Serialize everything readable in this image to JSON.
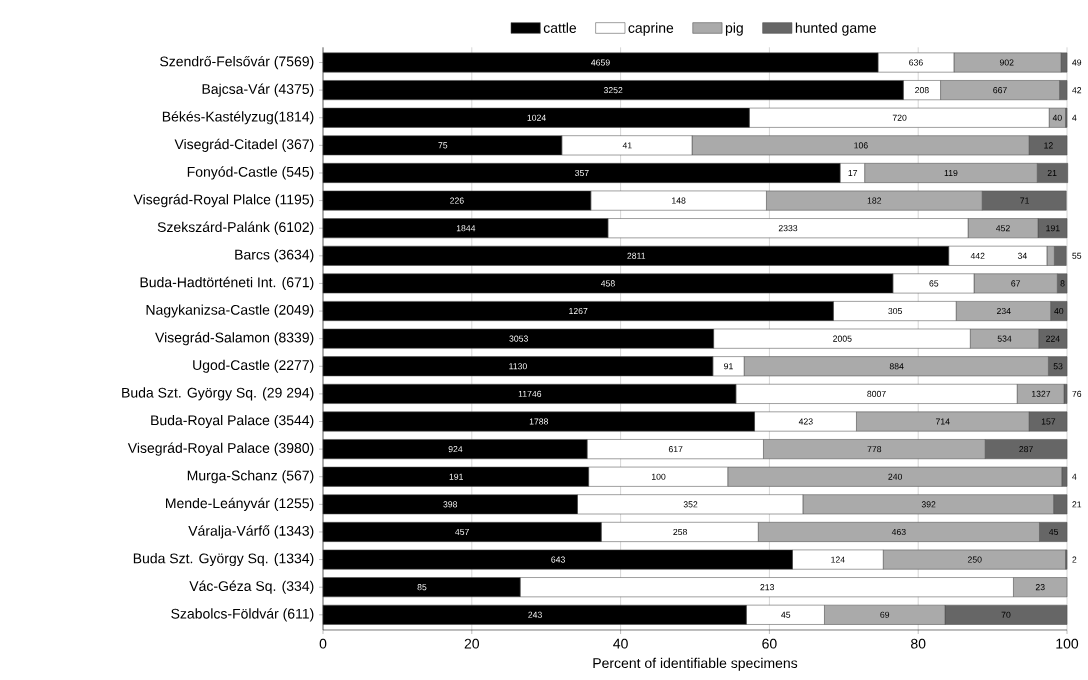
{
  "chart_data": {
    "type": "bar",
    "orientation": "horizontal",
    "stacked": true,
    "categories": [
      "Szendrő-Felsővár (7569)",
      "Bajcsa-Vár (4375)",
      "Békés-Kastélyzug(1814)",
      "Visegrád-Citadel (367)",
      "Fonyód-Castle (545)",
      "Visegrád-Royal Plalce (1195)",
      "Szekszárd-Palánk (6102)",
      "Barcs (3634)",
      "Buda-Hadtörténeti Int. (671)",
      "Nagykanizsa-Castle (2049)",
      "Visegrád-Salamon (8339)",
      "Ugod-Castle (2277)",
      "Buda Szt. György Sq. (29 294)",
      "Buda-Royal Palace (3544)",
      "Visegrád-Royal Palace (3980)",
      "Murga-Schanz (567)",
      "Mende-Leányvár (1255)",
      "Váralja-Várfő (1343)",
      "Buda Szt. György Sq. (1334)",
      "Vác-Géza Sq. (334)",
      "Szabolcs-Földvár (611)"
    ],
    "series": [
      {
        "name": "cattle",
        "color": "#000000",
        "values": [
          74.6,
          78.0,
          57.3,
          32.1,
          69.5,
          36.0,
          38.3,
          84.1,
          76.6,
          68.6,
          52.5,
          52.4,
          55.5,
          58.0,
          35.5,
          35.7,
          34.2,
          37.4,
          63.1,
          26.5,
          56.9
        ]
      },
      {
        "name": "caprine",
        "color": "#ffffff",
        "values": [
          10.2,
          5.0,
          40.3,
          17.5,
          3.3,
          23.6,
          48.4,
          13.2,
          10.9,
          16.5,
          34.5,
          4.2,
          37.8,
          13.7,
          23.7,
          18.7,
          30.3,
          21.1,
          12.2,
          66.3,
          10.5
        ]
      },
      {
        "name": "pig",
        "color": "#aaaaaa",
        "values": [
          14.4,
          16.0,
          2.2,
          45.3,
          23.2,
          29.0,
          9.4,
          1.0,
          11.2,
          12.7,
          9.2,
          40.9,
          6.3,
          23.2,
          29.8,
          44.9,
          33.7,
          37.8,
          24.5,
          7.2,
          16.2
        ]
      },
      {
        "name": "hunted game",
        "color": "#666666",
        "values": [
          0.8,
          1.0,
          0.2,
          5.1,
          4.1,
          11.3,
          3.9,
          1.6,
          1.3,
          2.2,
          3.8,
          2.5,
          0.4,
          5.1,
          11.0,
          0.7,
          1.8,
          3.7,
          0.2,
          null,
          16.4
        ]
      }
    ],
    "annotations": [
      {
        "text": "4659",
        "x": 37.3,
        "y": "Szendrő-Felsővár (7569)"
      },
      {
        "text": "636",
        "x": 79.7,
        "y": "Szendrő-Felsővár (7569)"
      },
      {
        "text": "902",
        "x": 91.9,
        "y": "Szendrő-Felsővár (7569)"
      },
      {
        "text": "49",
        "x": 100,
        "y": "Szendrő-Felsővár (7569)"
      },
      {
        "text": "3252",
        "x": 39.0,
        "y": "Bajcsa-Vár (4375)"
      },
      {
        "text": "208",
        "x": 80.5,
        "y": "Bajcsa-Vár (4375)"
      },
      {
        "text": "667",
        "x": 91.0,
        "y": "Bajcsa-Vár (4375)"
      },
      {
        "text": "42",
        "x": 100,
        "y": "Bajcsa-Vár (4375)"
      },
      {
        "text": "1024",
        "x": 28.7,
        "y": "Békés-Kastélyzug(1814)"
      },
      {
        "text": "720",
        "x": 77.5,
        "y": "Békés-Kastélyzug(1814)"
      },
      {
        "text": "40",
        "x": 98.7,
        "y": "Békés-Kastélyzug(1814)"
      },
      {
        "text": "4",
        "x": 100,
        "y": "Békés-Kastélyzug(1814)"
      },
      {
        "text": "75",
        "x": 16.1,
        "y": "Visegrád-Citadel (367)"
      },
      {
        "text": "41",
        "x": 40.9,
        "y": "Visegrád-Citadel (367)"
      },
      {
        "text": "106",
        "x": 72.3,
        "y": "Visegrád-Citadel (367)"
      },
      {
        "text": "12",
        "x": 97.5,
        "y": "Visegrád-Citadel (367)"
      },
      {
        "text": "357",
        "x": 34.8,
        "y": "Fonyód-Castle (545)"
      },
      {
        "text": "17",
        "x": 71.2,
        "y": "Fonyód-Castle (545)"
      },
      {
        "text": "119",
        "x": 84.4,
        "y": "Fonyód-Castle (545)"
      },
      {
        "text": "21",
        "x": 98.0,
        "y": "Fonyód-Castle (545)"
      },
      {
        "text": "226",
        "x": 18.0,
        "y": "Visegrád-Royal Plalce (1195)"
      },
      {
        "text": "148",
        "x": 47.8,
        "y": "Visegrád-Royal Plalce (1195)"
      },
      {
        "text": "182",
        "x": 74.1,
        "y": "Visegrád-Royal Plalce (1195)"
      },
      {
        "text": "71",
        "x": 94.3,
        "y": "Visegrád-Royal Plalce (1195)"
      },
      {
        "text": "1844",
        "x": 19.2,
        "y": "Szekszárd-Palánk (6102)"
      },
      {
        "text": "2333",
        "x": 62.5,
        "y": "Szekszárd-Palánk (6102)"
      },
      {
        "text": "452",
        "x": 91.4,
        "y": "Szekszárd-Palánk (6102)"
      },
      {
        "text": "191",
        "x": 98.1,
        "y": "Szekszárd-Palánk (6102)"
      },
      {
        "text": "2811",
        "x": 42.1,
        "y": "Barcs (3634)"
      },
      {
        "text": "442",
        "x": 88.0,
        "y": "Barcs (3634)"
      },
      {
        "text": "34",
        "x": 94.0,
        "y": "Barcs (3634)"
      },
      {
        "text": "55",
        "x": 100,
        "y": "Barcs (3634)"
      },
      {
        "text": "458",
        "x": 38.3,
        "y": "Buda-Hadtörténeti Int. (671)"
      },
      {
        "text": "65",
        "x": 82.1,
        "y": "Buda-Hadtörténeti Int. (671)"
      },
      {
        "text": "67",
        "x": 93.1,
        "y": "Buda-Hadtörténeti Int. (671)"
      },
      {
        "text": "8",
        "x": 99.4,
        "y": "Buda-Hadtörténeti Int. (671)"
      },
      {
        "text": "1267",
        "x": 34.3,
        "y": "Nagykanizsa-Castle (2049)"
      },
      {
        "text": "305",
        "x": 76.9,
        "y": "Nagykanizsa-Castle (2049)"
      },
      {
        "text": "234",
        "x": 91.5,
        "y": "Nagykanizsa-Castle (2049)"
      },
      {
        "text": "40",
        "x": 98.9,
        "y": "Nagykanizsa-Castle (2049)"
      },
      {
        "text": "3053",
        "x": 26.3,
        "y": "Visegrád-Salamon (8339)"
      },
      {
        "text": "2005",
        "x": 69.8,
        "y": "Visegrád-Salamon (8339)"
      },
      {
        "text": "534",
        "x": 91.6,
        "y": "Visegrád-Salamon (8339)"
      },
      {
        "text": "224",
        "x": 98.1,
        "y": "Visegrád-Salamon (8339)"
      },
      {
        "text": "1130",
        "x": 26.2,
        "y": "Ugod-Castle (2277)"
      },
      {
        "text": "91",
        "x": 54.5,
        "y": "Ugod-Castle (2277)"
      },
      {
        "text": "884",
        "x": 77.1,
        "y": "Ugod-Castle (2277)"
      },
      {
        "text": "53",
        "x": 98.8,
        "y": "Ugod-Castle (2277)"
      },
      {
        "text": "11746",
        "x": 27.8,
        "y": "Buda Szt. György Sq. (29 294)"
      },
      {
        "text": "8007",
        "x": 74.4,
        "y": "Buda Szt. György Sq. (29 294)"
      },
      {
        "text": "1327",
        "x": 96.5,
        "y": "Buda Szt. György Sq. (29 294)"
      },
      {
        "text": "76",
        "x": 100,
        "y": "Buda Szt. György Sq. (29 294)"
      },
      {
        "text": "1788",
        "x": 29.0,
        "y": "Buda-Royal Palace (3544)"
      },
      {
        "text": "423",
        "x": 64.9,
        "y": "Buda-Royal Palace (3544)"
      },
      {
        "text": "714",
        "x": 83.3,
        "y": "Buda-Royal Palace (3544)"
      },
      {
        "text": "157",
        "x": 97.5,
        "y": "Buda-Royal Palace (3544)"
      },
      {
        "text": "924",
        "x": 17.8,
        "y": "Visegrád-Royal Palace (3980)"
      },
      {
        "text": "617",
        "x": 47.4,
        "y": "Visegrád-Royal Palace (3980)"
      },
      {
        "text": "778",
        "x": 74.1,
        "y": "Visegrád-Royal Palace (3980)"
      },
      {
        "text": "287",
        "x": 94.5,
        "y": "Visegrád-Royal Palace (3980)"
      },
      {
        "text": "191",
        "x": 17.9,
        "y": "Murga-Schanz (567)"
      },
      {
        "text": "100",
        "x": 45.1,
        "y": "Murga-Schanz (567)"
      },
      {
        "text": "240",
        "x": 76.9,
        "y": "Murga-Schanz (567)"
      },
      {
        "text": "4",
        "x": 100,
        "y": "Murga-Schanz (567)"
      },
      {
        "text": "398",
        "x": 17.1,
        "y": "Mende-Leányvár (1255)"
      },
      {
        "text": "352",
        "x": 49.4,
        "y": "Mende-Leányvár (1255)"
      },
      {
        "text": "392",
        "x": 81.4,
        "y": "Mende-Leányvár (1255)"
      },
      {
        "text": "21",
        "x": 100,
        "y": "Mende-Leányvár (1255)"
      },
      {
        "text": "457",
        "x": 18.7,
        "y": "Váralja-Várfő (1343)"
      },
      {
        "text": "258",
        "x": 48.0,
        "y": "Váralja-Várfő (1343)"
      },
      {
        "text": "463",
        "x": 77.4,
        "y": "Váralja-Várfő (1343)"
      },
      {
        "text": "45",
        "x": 98.2,
        "y": "Váralja-Várfő (1343)"
      },
      {
        "text": "643",
        "x": 31.6,
        "y": "Buda Szt. György Sq. (1334)"
      },
      {
        "text": "124",
        "x": 69.2,
        "y": "Buda Szt. György Sq. (1334)"
      },
      {
        "text": "250",
        "x": 87.6,
        "y": "Buda Szt. György Sq. (1334)"
      },
      {
        "text": "2",
        "x": 100,
        "y": "Buda Szt. György Sq. (1334)"
      },
      {
        "text": "85",
        "x": 13.3,
        "y": "Vác-Géza Sq. (334)"
      },
      {
        "text": "213",
        "x": 59.7,
        "y": "Vác-Géza Sq. (334)"
      },
      {
        "text": "23",
        "x": 96.4,
        "y": "Vác-Géza Sq. (334)"
      },
      {
        "text": "243",
        "x": 28.5,
        "y": "Szabolcs-Földvár (611)"
      },
      {
        "text": "45",
        "x": 62.2,
        "y": "Szabolcs-Földvár (611)"
      },
      {
        "text": "69",
        "x": 75.5,
        "y": "Szabolcs-Földvár (611)"
      },
      {
        "text": "70",
        "x": 91.8,
        "y": "Szabolcs-Földvár (611)"
      }
    ],
    "xlim": [
      0,
      100
    ],
    "xticks": [
      0,
      20,
      40,
      60,
      80,
      100
    ],
    "xlabel": "Percent of identifiable specimens",
    "legend": "top",
    "grid": "x"
  }
}
